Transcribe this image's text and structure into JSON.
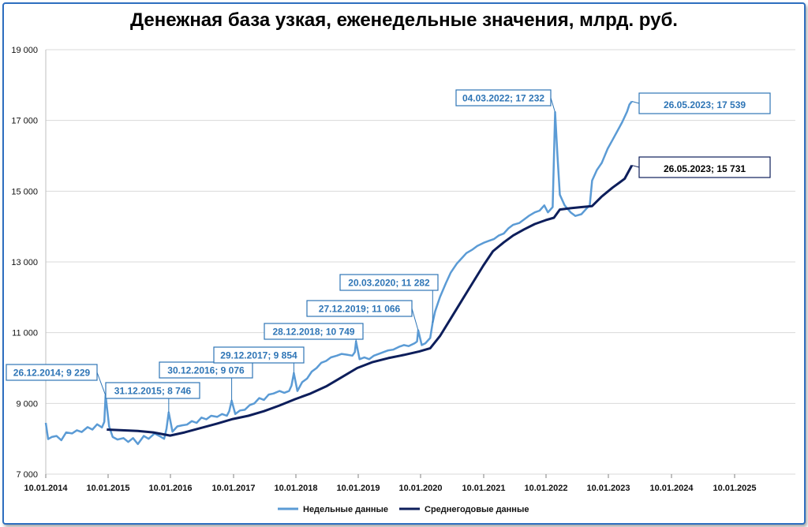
{
  "chart_data": {
    "type": "line",
    "title": "Денежная база узкая, еженедельные значения, млрд. руб.",
    "ylim": [
      7000,
      19500
    ],
    "y_ticks": [
      7000,
      9000,
      11000,
      13000,
      15000,
      17000,
      19000
    ],
    "y_tick_labels": [
      "7 000",
      "9 000",
      "11 000",
      "13 000",
      "15 000",
      "17 000",
      "19 000"
    ],
    "x_ticks": [
      "2014-01-10",
      "2015-01-10",
      "2016-01-10",
      "2017-01-10",
      "2018-01-10",
      "2019-01-10",
      "2020-01-10",
      "2021-01-10",
      "2022-01-10",
      "2023-01-10",
      "2024-01-10",
      "2025-01-10"
    ],
    "x_tick_labels": [
      "10.01.2014",
      "10.01.2015",
      "10.01.2016",
      "10.01.2017",
      "10.01.2018",
      "10.01.2019",
      "10.01.2020",
      "10.01.2021",
      "10.01.2022",
      "10.01.2023",
      "10.01.2024",
      "10.01.2025"
    ],
    "xlim": [
      "2014-01-10",
      "2026-01-10"
    ],
    "grid": "horizontal",
    "legend_position": "bottom",
    "series": [
      {
        "name": "Недельные данные",
        "color": "#5b9bd5",
        "points": [
          [
            "2014-01-10",
            8450
          ],
          [
            "2014-01-24",
            7990
          ],
          [
            "2014-02-14",
            8050
          ],
          [
            "2014-03-14",
            8080
          ],
          [
            "2014-04-11",
            7960
          ],
          [
            "2014-05-09",
            8180
          ],
          [
            "2014-06-13",
            8150
          ],
          [
            "2014-07-11",
            8240
          ],
          [
            "2014-08-08",
            8190
          ],
          [
            "2014-09-12",
            8330
          ],
          [
            "2014-10-10",
            8260
          ],
          [
            "2014-11-07",
            8410
          ],
          [
            "2014-12-05",
            8320
          ],
          [
            "2014-12-19",
            8480
          ],
          [
            "2014-12-26",
            9229
          ],
          [
            "2015-01-16",
            8350
          ],
          [
            "2015-02-06",
            8050
          ],
          [
            "2015-03-06",
            7980
          ],
          [
            "2015-04-10",
            8020
          ],
          [
            "2015-05-08",
            7910
          ],
          [
            "2015-06-05",
            8020
          ],
          [
            "2015-07-03",
            7850
          ],
          [
            "2015-08-07",
            8080
          ],
          [
            "2015-09-04",
            8000
          ],
          [
            "2015-10-09",
            8150
          ],
          [
            "2015-11-06",
            8080
          ],
          [
            "2015-12-04",
            8000
          ],
          [
            "2015-12-18",
            8280
          ],
          [
            "2015-12-31",
            8746
          ],
          [
            "2016-01-22",
            8200
          ],
          [
            "2016-02-19",
            8350
          ],
          [
            "2016-03-18",
            8380
          ],
          [
            "2016-04-15",
            8400
          ],
          [
            "2016-05-13",
            8500
          ],
          [
            "2016-06-10",
            8450
          ],
          [
            "2016-07-08",
            8600
          ],
          [
            "2016-08-05",
            8550
          ],
          [
            "2016-09-02",
            8650
          ],
          [
            "2016-10-07",
            8620
          ],
          [
            "2016-11-04",
            8700
          ],
          [
            "2016-12-02",
            8650
          ],
          [
            "2016-12-16",
            8780
          ],
          [
            "2016-12-30",
            9076
          ],
          [
            "2017-01-20",
            8700
          ],
          [
            "2017-02-17",
            8800
          ],
          [
            "2017-03-17",
            8820
          ],
          [
            "2017-04-14",
            8950
          ],
          [
            "2017-05-12",
            9000
          ],
          [
            "2017-06-09",
            9150
          ],
          [
            "2017-07-07",
            9100
          ],
          [
            "2017-08-04",
            9250
          ],
          [
            "2017-09-01",
            9280
          ],
          [
            "2017-10-06",
            9350
          ],
          [
            "2017-11-03",
            9300
          ],
          [
            "2017-12-01",
            9350
          ],
          [
            "2017-12-15",
            9500
          ],
          [
            "2017-12-29",
            9854
          ],
          [
            "2018-01-19",
            9350
          ],
          [
            "2018-02-16",
            9600
          ],
          [
            "2018-03-16",
            9700
          ],
          [
            "2018-04-13",
            9900
          ],
          [
            "2018-05-11",
            10000
          ],
          [
            "2018-06-08",
            10150
          ],
          [
            "2018-07-06",
            10200
          ],
          [
            "2018-08-03",
            10300
          ],
          [
            "2018-09-07",
            10350
          ],
          [
            "2018-10-05",
            10400
          ],
          [
            "2018-11-02",
            10380
          ],
          [
            "2018-12-07",
            10350
          ],
          [
            "2018-12-21",
            10450
          ],
          [
            "2018-12-28",
            10749
          ],
          [
            "2019-01-18",
            10250
          ],
          [
            "2019-02-15",
            10300
          ],
          [
            "2019-03-15",
            10250
          ],
          [
            "2019-04-12",
            10350
          ],
          [
            "2019-05-10",
            10400
          ],
          [
            "2019-06-07",
            10450
          ],
          [
            "2019-07-05",
            10500
          ],
          [
            "2019-08-02",
            10520
          ],
          [
            "2019-09-06",
            10600
          ],
          [
            "2019-10-04",
            10650
          ],
          [
            "2019-11-01",
            10620
          ],
          [
            "2019-12-06",
            10700
          ],
          [
            "2019-12-20",
            10750
          ],
          [
            "2019-12-27",
            11066
          ],
          [
            "2020-01-17",
            10650
          ],
          [
            "2020-02-07",
            10700
          ],
          [
            "2020-03-06",
            10850
          ],
          [
            "2020-03-20",
            11282
          ],
          [
            "2020-04-03",
            11600
          ],
          [
            "2020-05-01",
            12000
          ],
          [
            "2020-06-05",
            12400
          ],
          [
            "2020-07-03",
            12700
          ],
          [
            "2020-08-07",
            12950
          ],
          [
            "2020-09-04",
            13100
          ],
          [
            "2020-10-02",
            13250
          ],
          [
            "2020-11-06",
            13350
          ],
          [
            "2020-12-04",
            13450
          ],
          [
            "2021-01-15",
            13550
          ],
          [
            "2021-02-12",
            13600
          ],
          [
            "2021-03-12",
            13650
          ],
          [
            "2021-04-09",
            13750
          ],
          [
            "2021-05-07",
            13800
          ],
          [
            "2021-06-04",
            13950
          ],
          [
            "2021-07-02",
            14050
          ],
          [
            "2021-08-06",
            14100
          ],
          [
            "2021-09-03",
            14200
          ],
          [
            "2021-10-01",
            14300
          ],
          [
            "2021-11-05",
            14400
          ],
          [
            "2021-12-03",
            14450
          ],
          [
            "2021-12-31",
            14600
          ],
          [
            "2022-01-21",
            14400
          ],
          [
            "2022-02-18",
            14550
          ],
          [
            "2022-03-04",
            17232
          ],
          [
            "2022-03-18",
            16000
          ],
          [
            "2022-04-01",
            14900
          ],
          [
            "2022-04-29",
            14600
          ],
          [
            "2022-06-03",
            14400
          ],
          [
            "2022-07-01",
            14300
          ],
          [
            "2022-08-05",
            14350
          ],
          [
            "2022-09-02",
            14500
          ],
          [
            "2022-09-23",
            14600
          ],
          [
            "2022-10-07",
            15300
          ],
          [
            "2022-11-04",
            15600
          ],
          [
            "2022-12-02",
            15800
          ],
          [
            "2023-01-06",
            16200
          ],
          [
            "2023-02-03",
            16450
          ],
          [
            "2023-03-03",
            16700
          ],
          [
            "2023-03-31",
            16950
          ],
          [
            "2023-04-28",
            17250
          ],
          [
            "2023-05-12",
            17450
          ],
          [
            "2023-05-26",
            17539
          ]
        ]
      },
      {
        "name": "Среднегодовые данные",
        "color": "#0d1e5b",
        "points": [
          [
            "2015-01-02",
            8260
          ],
          [
            "2015-04-03",
            8240
          ],
          [
            "2015-07-03",
            8220
          ],
          [
            "2015-10-02",
            8180
          ],
          [
            "2016-01-08",
            8090
          ],
          [
            "2016-04-01",
            8180
          ],
          [
            "2016-07-01",
            8300
          ],
          [
            "2016-10-07",
            8430
          ],
          [
            "2017-01-06",
            8560
          ],
          [
            "2017-04-07",
            8650
          ],
          [
            "2017-07-07",
            8780
          ],
          [
            "2017-10-06",
            8940
          ],
          [
            "2018-01-05",
            9120
          ],
          [
            "2018-04-06",
            9280
          ],
          [
            "2018-07-06",
            9480
          ],
          [
            "2018-10-05",
            9740
          ],
          [
            "2019-01-04",
            10000
          ],
          [
            "2019-04-05",
            10170
          ],
          [
            "2019-07-05",
            10280
          ],
          [
            "2019-10-04",
            10370
          ],
          [
            "2020-01-03",
            10470
          ],
          [
            "2020-03-06",
            10560
          ],
          [
            "2020-05-01",
            10900
          ],
          [
            "2020-07-03",
            11400
          ],
          [
            "2020-09-04",
            11900
          ],
          [
            "2020-11-06",
            12400
          ],
          [
            "2021-01-08",
            12900
          ],
          [
            "2021-03-05",
            13300
          ],
          [
            "2021-05-07",
            13550
          ],
          [
            "2021-07-02",
            13750
          ],
          [
            "2021-09-03",
            13920
          ],
          [
            "2021-11-05",
            14070
          ],
          [
            "2022-01-07",
            14180
          ],
          [
            "2022-02-25",
            14250
          ],
          [
            "2022-04-01",
            14480
          ],
          [
            "2022-06-03",
            14520
          ],
          [
            "2022-08-05",
            14550
          ],
          [
            "2022-10-07",
            14580
          ],
          [
            "2022-12-02",
            14850
          ],
          [
            "2023-02-03",
            15100
          ],
          [
            "2023-03-17",
            15250
          ],
          [
            "2023-04-14",
            15350
          ],
          [
            "2023-05-26",
            15731
          ]
        ]
      }
    ],
    "annotations": [
      {
        "label": "26.12.2014; 9 229",
        "x": "2014-12-26",
        "y": 9229,
        "series": 0
      },
      {
        "label": "31.12.2015; 8 746",
        "x": "2015-12-31",
        "y": 8746,
        "series": 0
      },
      {
        "label": "30.12.2016; 9 076",
        "x": "2016-12-30",
        "y": 9076,
        "series": 0
      },
      {
        "label": "29.12.2017; 9 854",
        "x": "2017-12-29",
        "y": 9854,
        "series": 0
      },
      {
        "label": "28.12.2018; 10 749",
        "x": "2018-12-28",
        "y": 10749,
        "series": 0
      },
      {
        "label": "27.12.2019; 11 066",
        "x": "2019-12-27",
        "y": 11066,
        "series": 0
      },
      {
        "label": "20.03.2020; 11 282",
        "x": "2020-03-20",
        "y": 11282,
        "series": 0
      },
      {
        "label": "04.03.2022; 17 232",
        "x": "2022-03-04",
        "y": 17232,
        "series": 0
      },
      {
        "label": "26.05.2023; 17 539",
        "x": "2023-05-26",
        "y": 17539,
        "series": 0
      },
      {
        "label": "26.05.2023; 15 731",
        "x": "2023-05-26",
        "y": 15731,
        "series": 1
      }
    ]
  }
}
